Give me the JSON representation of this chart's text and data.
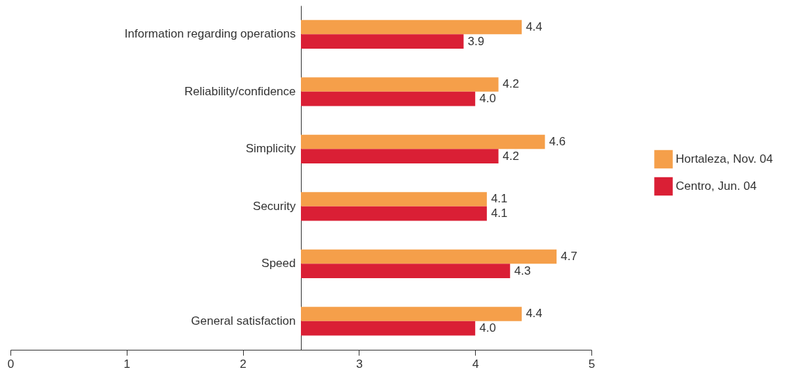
{
  "chart_data": {
    "type": "bar",
    "orientation": "horizontal",
    "categories": [
      "Information regarding operations",
      "Reliability/confidence",
      "Simplicity",
      "Security",
      "Speed",
      "General satisfaction"
    ],
    "series": [
      {
        "name": "Hortaleza, Nov. 04",
        "color": "#f59f4a",
        "base": [
          2.5,
          2.5,
          2.5,
          2.5,
          2.5,
          2.5
        ],
        "values": [
          1.9,
          1.7,
          2.1,
          1.6,
          2.2,
          1.9
        ],
        "value_labels": [
          "4.4",
          "4.2",
          "4.6",
          "4.1",
          "4.7",
          "4.4"
        ]
      },
      {
        "name": "Centro, Jun. 04",
        "color": "#da1f35",
        "base": [
          2.5,
          2.5,
          2.5,
          2.5,
          2.5,
          2.5
        ],
        "values": [
          1.4,
          1.5,
          1.7,
          1.6,
          1.8,
          1.5
        ],
        "value_labels": [
          "3.9",
          "4.0",
          "4.2",
          "4.1",
          "4.3",
          "4.0"
        ]
      }
    ],
    "xlim": [
      0,
      5
    ],
    "xticks": [
      0,
      1,
      2,
      3,
      4,
      5
    ],
    "grid": false,
    "legend": "right"
  }
}
